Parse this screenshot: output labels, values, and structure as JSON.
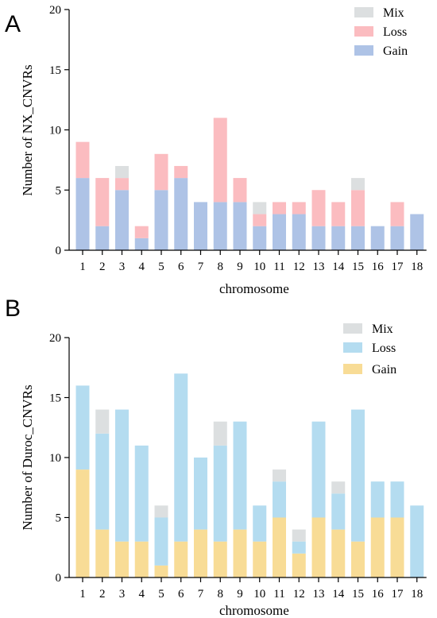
{
  "chart_data": [
    {
      "type": "bar",
      "stacked": true,
      "panel_label": "A",
      "title": "",
      "xlabel": "chromosome",
      "ylabel": "Number of  NX_CNVRs",
      "ylim": [
        0,
        20
      ],
      "yticks": [
        0,
        5,
        10,
        15,
        20
      ],
      "grid": false,
      "legend_position": "top-right",
      "categories": [
        "1",
        "2",
        "3",
        "4",
        "5",
        "6",
        "7",
        "8",
        "9",
        "10",
        "11",
        "12",
        "13",
        "14",
        "15",
        "16",
        "17",
        "18"
      ],
      "series": [
        {
          "name": "Gain",
          "color": "#aec3e6",
          "values": [
            6,
            2,
            5,
            1,
            5,
            6,
            4,
            4,
            4,
            2,
            3,
            3,
            2,
            2,
            2,
            2,
            2,
            3
          ]
        },
        {
          "name": "Loss",
          "color": "#fbbcc0",
          "values": [
            3,
            4,
            1,
            1,
            3,
            1,
            0,
            7,
            2,
            1,
            1,
            1,
            3,
            2,
            3,
            0,
            2,
            0
          ]
        },
        {
          "name": "Mix",
          "color": "#dcdfe0",
          "values": [
            0,
            0,
            1,
            0,
            0,
            0,
            0,
            0,
            0,
            1,
            0,
            0,
            0,
            0,
            1,
            0,
            0,
            0
          ]
        }
      ]
    },
    {
      "type": "bar",
      "stacked": true,
      "panel_label": "B",
      "title": "",
      "xlabel": "chromosome",
      "ylabel": "Number of  Duroc_CNVRs",
      "ylim": [
        0,
        20
      ],
      "yticks": [
        0,
        5,
        10,
        15,
        20
      ],
      "grid": false,
      "legend_position": "top-right",
      "categories": [
        "1",
        "2",
        "3",
        "4",
        "5",
        "6",
        "7",
        "8",
        "9",
        "10",
        "11",
        "12",
        "13",
        "14",
        "15",
        "16",
        "17",
        "18"
      ],
      "series": [
        {
          "name": "Gain",
          "color": "#f8dc96",
          "values": [
            9,
            4,
            3,
            3,
            1,
            3,
            4,
            3,
            4,
            3,
            5,
            2,
            5,
            4,
            3,
            5,
            5,
            0
          ]
        },
        {
          "name": "Loss",
          "color": "#b4dcf0",
          "values": [
            7,
            8,
            11,
            8,
            4,
            14,
            6,
            8,
            9,
            3,
            3,
            1,
            8,
            3,
            11,
            3,
            3,
            6
          ]
        },
        {
          "name": "Mix",
          "color": "#dcdfe0",
          "values": [
            0,
            2,
            0,
            0,
            1,
            0,
            0,
            2,
            0,
            0,
            1,
            1,
            0,
            1,
            0,
            0,
            0,
            0
          ]
        }
      ]
    }
  ]
}
